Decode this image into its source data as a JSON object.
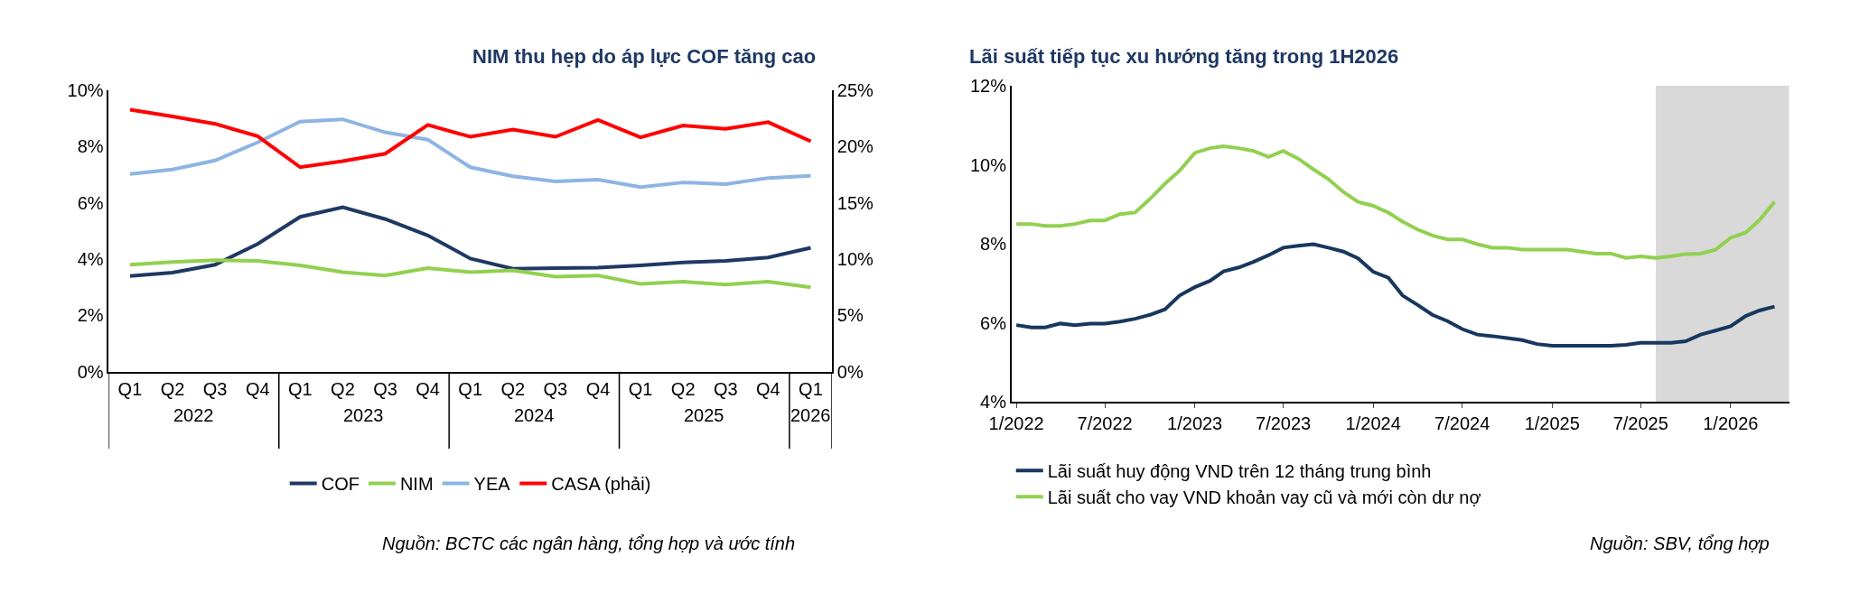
{
  "chart_data": [
    {
      "type": "line",
      "title": "NIM thu hẹp do áp lực COF tăng cao",
      "categories": [
        "Q1",
        "Q2",
        "Q3",
        "Q4",
        "Q1",
        "Q2",
        "Q3",
        "Q4",
        "Q1",
        "Q2",
        "Q3",
        "Q4",
        "Q1",
        "Q2",
        "Q3",
        "Q4",
        "Q1"
      ],
      "series": [
        {
          "name": "COF",
          "color": "#1f3864",
          "values": [
            3.4,
            3.52,
            3.8,
            4.54,
            5.5,
            5.84,
            5.42,
            4.84,
            4.02,
            3.66,
            3.68,
            3.7,
            3.78,
            3.88,
            3.94,
            4.06,
            4.4
          ]
        },
        {
          "name": "NIM",
          "color": "#92d050",
          "values": [
            3.8,
            3.9,
            3.96,
            3.94,
            3.78,
            3.54,
            3.42,
            3.68,
            3.54,
            3.6,
            3.38,
            3.42,
            3.12,
            3.2,
            3.1,
            3.2,
            3.0
          ]
        },
        {
          "name": "YEA",
          "color": "#8eb4e3",
          "values": [
            7.02,
            7.18,
            7.5,
            8.14,
            8.88,
            8.96,
            8.5,
            8.24,
            7.26,
            6.94,
            6.76,
            6.82,
            6.56,
            6.72,
            6.66,
            6.88,
            6.96
          ]
        },
        {
          "name": "CASA (phải)",
          "color": "#ff0000",
          "axis": "y2",
          "values": [
            23.25,
            22.65,
            22.0,
            20.9,
            18.15,
            18.7,
            19.35,
            21.9,
            20.85,
            21.5,
            20.85,
            22.35,
            20.8,
            21.85,
            21.55,
            22.15,
            20.45
          ]
        }
      ],
      "ylim": [
        0,
        10
      ],
      "yticks": [
        {
          "value": 0,
          "label": "0%"
        },
        {
          "value": 2,
          "label": "2%"
        },
        {
          "value": 4,
          "label": "4%"
        },
        {
          "value": 6,
          "label": "6%"
        },
        {
          "value": 8,
          "label": "8%"
        },
        {
          "value": 10,
          "label": "10%"
        }
      ],
      "y2lim": [
        0,
        25
      ],
      "y2ticks": [
        {
          "value": 0,
          "label": "0%"
        },
        {
          "value": 5,
          "label": "5%"
        },
        {
          "value": 10,
          "label": "10%"
        },
        {
          "value": 15,
          "label": "15%"
        },
        {
          "value": 20,
          "label": "20%"
        },
        {
          "value": 25,
          "label": "25%"
        }
      ],
      "annotations": [
        "2022",
        "2023",
        "2024",
        "2025",
        "2026",
        "Nguồn: BCTC các ngân hàng, tổng hợp và ước tính"
      ],
      "legend": "bottom",
      "grid": false,
      "marker": "none",
      "line_style": "solid"
    },
    {
      "type": "line",
      "title": "Lãi suất tiếp tục xu hướng tăng trong 1H2026",
      "x": [
        "2022-01",
        "2022-02",
        "2022-03",
        "2022-04",
        "2022-05",
        "2022-06",
        "2022-07",
        "2022-08",
        "2022-09",
        "2022-10",
        "2022-11",
        "2022-12",
        "2023-01",
        "2023-02",
        "2023-03",
        "2023-04",
        "2023-05",
        "2023-06",
        "2023-07",
        "2023-08",
        "2023-09",
        "2023-10",
        "2023-11",
        "2023-12",
        "2024-01",
        "2024-02",
        "2024-03",
        "2024-04",
        "2024-05",
        "2024-06",
        "2024-07",
        "2024-08",
        "2024-09",
        "2024-10",
        "2024-11",
        "2024-12",
        "2025-01",
        "2025-02",
        "2025-03",
        "2025-04",
        "2025-05",
        "2025-06",
        "2025-07",
        "2025-08",
        "2025-09",
        "2025-10",
        "2025-11",
        "2025-12",
        "2026-01",
        "2026-02",
        "2026-03",
        "2026-04"
      ],
      "series": [
        {
          "name": "Lãi suất huy động VND trên 12 tháng trung bình",
          "color": "#17375e",
          "values": [
            5.94,
            5.88,
            5.88,
            5.98,
            5.94,
            5.98,
            5.98,
            6.03,
            6.1,
            6.2,
            6.34,
            6.69,
            6.9,
            7.06,
            7.3,
            7.4,
            7.54,
            7.71,
            7.9,
            7.95,
            7.99,
            7.9,
            7.8,
            7.63,
            7.29,
            7.14,
            6.69,
            6.45,
            6.2,
            6.04,
            5.84,
            5.7,
            5.66,
            5.61,
            5.56,
            5.46,
            5.42,
            5.42,
            5.42,
            5.42,
            5.42,
            5.44,
            5.49,
            5.49,
            5.49,
            5.53,
            5.7,
            5.8,
            5.91,
            6.17,
            6.31,
            6.41
          ]
        },
        {
          "name": "Lãi suất cho vay VND khoản vay cũ và mới còn dư nợ",
          "color": "#92d050",
          "values": [
            8.5,
            8.5,
            8.45,
            8.45,
            8.5,
            8.59,
            8.59,
            8.75,
            8.79,
            9.13,
            9.52,
            9.85,
            10.3,
            10.42,
            10.47,
            10.42,
            10.35,
            10.2,
            10.35,
            10.15,
            9.88,
            9.64,
            9.31,
            9.06,
            8.96,
            8.79,
            8.56,
            8.36,
            8.21,
            8.11,
            8.11,
            7.99,
            7.9,
            7.9,
            7.85,
            7.85,
            7.85,
            7.85,
            7.8,
            7.75,
            7.75,
            7.64,
            7.68,
            7.64,
            7.68,
            7.74,
            7.75,
            7.85,
            8.15,
            8.28,
            8.6,
            9.06
          ]
        }
      ],
      "xlim": [
        "2021-12-22",
        "2026-05-01"
      ],
      "xticks": [
        {
          "value": "2022-01",
          "label": "1/2022"
        },
        {
          "value": "2022-07",
          "label": "7/2022"
        },
        {
          "value": "2023-01",
          "label": "1/2023"
        },
        {
          "value": "2023-07",
          "label": "7/2023"
        },
        {
          "value": "2024-01",
          "label": "1/2024"
        },
        {
          "value": "2024-07",
          "label": "7/2024"
        },
        {
          "value": "2025-01",
          "label": "1/2025"
        },
        {
          "value": "2025-07",
          "label": "7/2025"
        },
        {
          "value": "2026-01",
          "label": "1/2026"
        }
      ],
      "ylim": [
        4,
        12
      ],
      "yticks": [
        {
          "value": 4,
          "label": "4%"
        },
        {
          "value": 6,
          "label": "6%"
        },
        {
          "value": 8,
          "label": "8%"
        },
        {
          "value": 10,
          "label": "10%"
        },
        {
          "value": 12,
          "label": "12%"
        }
      ],
      "bands": [
        {
          "axis": "x",
          "from": "2025-08",
          "to": "2026-05",
          "color": "#d9d9d9"
        }
      ],
      "annotations": [
        "Nguồn: SBV, tổng hợp"
      ],
      "legend": "bottom left",
      "grid": false,
      "marker": "none",
      "line_style": "solid"
    }
  ]
}
